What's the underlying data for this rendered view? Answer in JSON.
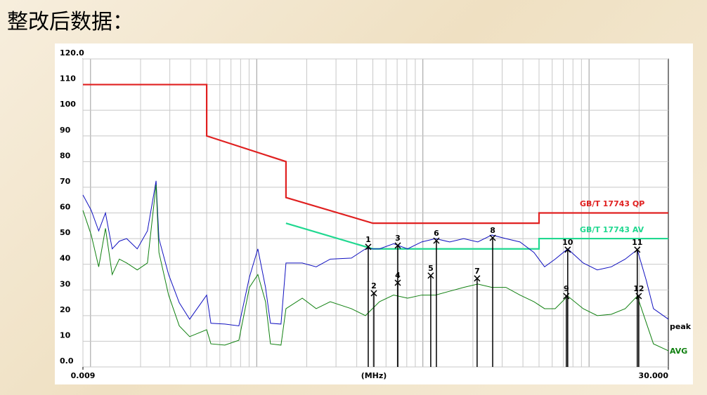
{
  "title": "整改后数据：",
  "chart_data": {
    "type": "line",
    "x_label": "(MHz)",
    "xscale": "log",
    "grid": true,
    "xlim": [
      0.009,
      30
    ],
    "ylim": [
      0,
      120
    ],
    "xticks": [
      {
        "value": 0.009,
        "label": "0.009"
      },
      {
        "value": 30,
        "label": "30.000"
      }
    ],
    "yticks": [
      {
        "value": 120,
        "label": "120.0"
      },
      110,
      100,
      90,
      80,
      70,
      60,
      50,
      40,
      30,
      20,
      10,
      {
        "value": 0,
        "label": "0.0"
      }
    ],
    "series": [
      {
        "name": "GB/T 17743 QP",
        "color": "#e02020",
        "x": [
          0.009,
          0.05,
          0.05,
          0.15,
          0.15,
          0.5,
          5,
          5,
          30
        ],
        "values": [
          110,
          110,
          90,
          80,
          66,
          56,
          56,
          60,
          60
        ]
      },
      {
        "name": "GB/T 17743 AV",
        "color": "#20d890",
        "x": [
          0.15,
          0.5,
          5,
          5,
          30
        ],
        "values": [
          56,
          46,
          46,
          50,
          50
        ]
      },
      {
        "name": "peak",
        "color": "#1010c0",
        "x": [
          0.009,
          0.0101,
          0.0112,
          0.0123,
          0.0135,
          0.0149,
          0.0165,
          0.0191,
          0.022,
          0.0248,
          0.0258,
          0.0295,
          0.0342,
          0.0395,
          0.05,
          0.053,
          0.0643,
          0.0781,
          0.0904,
          0.1016,
          0.113,
          0.121,
          0.14,
          0.15,
          0.188,
          0.228,
          0.277,
          0.371,
          0.451,
          0.548,
          0.666,
          0.809,
          0.983,
          1.19,
          1.45,
          1.76,
          2.14,
          2.6,
          3.16,
          3.84,
          4.66,
          5.4,
          6.25,
          7.44,
          9.22,
          11.2,
          13.6,
          16.5,
          19.5,
          22.1,
          24.4,
          30
        ],
        "values": [
          67,
          61,
          53,
          60,
          46,
          49,
          50,
          46,
          53,
          72.5,
          50,
          36,
          25,
          18.6,
          28,
          17,
          16.7,
          16,
          35,
          46,
          31,
          17,
          16.7,
          40.5,
          40.5,
          39,
          42,
          42.4,
          46,
          46,
          48,
          46,
          48.7,
          50,
          48.7,
          50,
          48.7,
          51.4,
          50,
          48.7,
          44.6,
          39,
          42,
          46,
          40.5,
          37.8,
          39,
          42,
          45.7,
          33.7,
          22.7,
          18.6
        ]
      },
      {
        "name": "AVG",
        "color": "#108010",
        "x": [
          0.009,
          0.0101,
          0.0112,
          0.0123,
          0.0135,
          0.0149,
          0.0165,
          0.0191,
          0.022,
          0.0248,
          0.0258,
          0.0295,
          0.0342,
          0.0395,
          0.05,
          0.053,
          0.0643,
          0.0781,
          0.0904,
          0.1016,
          0.113,
          0.121,
          0.14,
          0.15,
          0.188,
          0.228,
          0.277,
          0.371,
          0.451,
          0.548,
          0.666,
          0.809,
          0.983,
          1.19,
          1.45,
          1.76,
          2.14,
          2.6,
          3.16,
          3.84,
          4.66,
          5.4,
          6.25,
          7.44,
          9.22,
          11.2,
          13.6,
          16.5,
          19.5,
          22.1,
          24.4,
          30
        ],
        "values": [
          61,
          51.4,
          39,
          54,
          36,
          42,
          40.5,
          37.8,
          40.5,
          71,
          44.6,
          28,
          16,
          11.8,
          14.5,
          9,
          8.5,
          10.4,
          31,
          36,
          25.4,
          9,
          8.5,
          22.7,
          26.8,
          22.7,
          25.4,
          22.7,
          20,
          25.4,
          28,
          26.8,
          28,
          28,
          29.5,
          31,
          32.3,
          31,
          31,
          28,
          25.4,
          22.7,
          22.7,
          27.6,
          22.7,
          20,
          20.5,
          22.7,
          27.6,
          17.2,
          9,
          6.3
        ]
      }
    ],
    "markers": [
      {
        "label": "1",
        "x": 0.469,
        "y": 46.8
      },
      {
        "label": "2",
        "x": 0.507,
        "y": 28.7
      },
      {
        "label": "3",
        "x": 0.706,
        "y": 47.3
      },
      {
        "label": "4",
        "x": 0.706,
        "y": 32.8
      },
      {
        "label": "5",
        "x": 1.115,
        "y": 35.6
      },
      {
        "label": "6",
        "x": 1.206,
        "y": 49.2
      },
      {
        "label": "7",
        "x": 2.12,
        "y": 34.5
      },
      {
        "label": "8",
        "x": 2.63,
        "y": 50.3
      },
      {
        "label": "9",
        "x": 7.3,
        "y": 27.6
      },
      {
        "label": "10",
        "x": 7.44,
        "y": 45.7
      },
      {
        "label": "11",
        "x": 19.5,
        "y": 45.7
      },
      {
        "label": "12",
        "x": 19.9,
        "y": 27.6
      }
    ]
  }
}
